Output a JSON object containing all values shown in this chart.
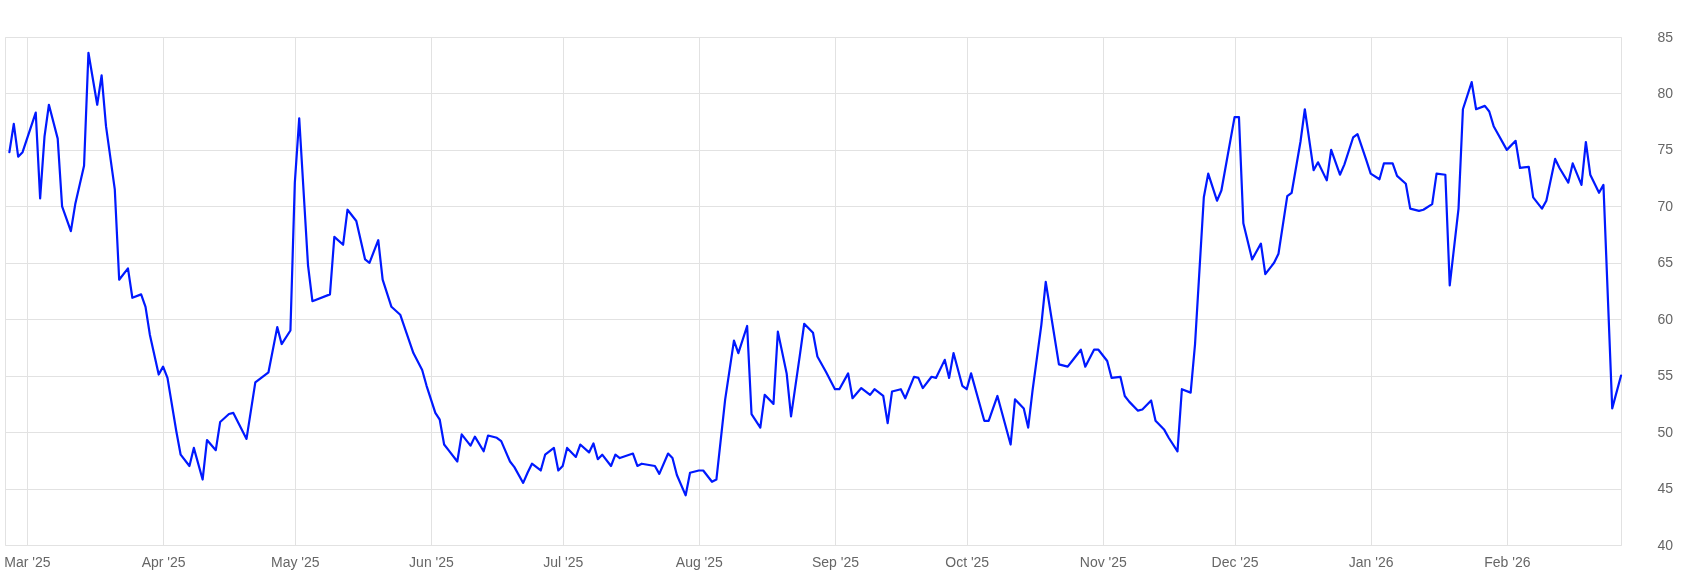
{
  "chart_data": {
    "type": "line",
    "grid": true,
    "xlim": [
      "2025-02-24",
      "2026-02-27"
    ],
    "xticks": [
      {
        "value": "2025-03-01",
        "label": "Mar '25"
      },
      {
        "value": "2025-04-01",
        "label": "Apr '25"
      },
      {
        "value": "2025-05-01",
        "label": "May '25"
      },
      {
        "value": "2025-06-01",
        "label": "Jun '25"
      },
      {
        "value": "2025-07-01",
        "label": "Jul '25"
      },
      {
        "value": "2025-08-01",
        "label": "Aug '25"
      },
      {
        "value": "2025-09-01",
        "label": "Sep '25"
      },
      {
        "value": "2025-10-01",
        "label": "Oct '25"
      },
      {
        "value": "2025-11-01",
        "label": "Nov '25"
      },
      {
        "value": "2025-12-01",
        "label": "Dec '25"
      },
      {
        "value": "2026-01-01",
        "label": "Jan '26"
      },
      {
        "value": "2026-02-01",
        "label": "Feb '26"
      }
    ],
    "ylim": [
      40,
      85
    ],
    "yticks": [
      40,
      45,
      50,
      55,
      60,
      65,
      70,
      75,
      80,
      85
    ],
    "x": [
      "2025-02-25",
      "2025-02-26",
      "2025-02-27",
      "2025-02-28",
      "2025-03-03",
      "2025-03-04",
      "2025-03-05",
      "2025-03-06",
      "2025-03-08",
      "2025-03-09",
      "2025-03-11",
      "2025-03-12",
      "2025-03-14",
      "2025-03-15",
      "2025-03-17",
      "2025-03-18",
      "2025-03-19",
      "2025-03-21",
      "2025-03-22",
      "2025-03-24",
      "2025-03-25",
      "2025-03-27",
      "2025-03-28",
      "2025-03-29",
      "2025-03-31",
      "2025-04-01",
      "2025-04-02",
      "2025-04-04",
      "2025-04-05",
      "2025-04-07",
      "2025-04-08",
      "2025-04-10",
      "2025-04-11",
      "2025-04-13",
      "2025-04-14",
      "2025-04-16",
      "2025-04-17",
      "2025-04-20",
      "2025-04-22",
      "2025-04-25",
      "2025-04-27",
      "2025-04-28",
      "2025-04-30",
      "2025-05-01",
      "2025-05-02",
      "2025-05-04",
      "2025-05-05",
      "2025-05-09",
      "2025-05-10",
      "2025-05-12",
      "2025-05-13",
      "2025-05-15",
      "2025-05-17",
      "2025-05-18",
      "2025-05-20",
      "2025-05-21",
      "2025-05-23",
      "2025-05-25",
      "2025-05-28",
      "2025-05-30",
      "2025-05-31",
      "2025-06-02",
      "2025-06-03",
      "2025-06-04",
      "2025-06-05",
      "2025-06-07",
      "2025-06-08",
      "2025-06-10",
      "2025-06-11",
      "2025-06-13",
      "2025-06-14",
      "2025-06-16",
      "2025-06-17",
      "2025-06-19",
      "2025-06-20",
      "2025-06-22",
      "2025-06-23",
      "2025-06-24",
      "2025-06-26",
      "2025-06-27",
      "2025-06-29",
      "2025-06-30",
      "2025-07-01",
      "2025-07-02",
      "2025-07-04",
      "2025-07-05",
      "2025-07-07",
      "2025-07-08",
      "2025-07-09",
      "2025-07-10",
      "2025-07-12",
      "2025-07-13",
      "2025-07-14",
      "2025-07-17",
      "2025-07-18",
      "2025-07-19",
      "2025-07-22",
      "2025-07-23",
      "2025-07-25",
      "2025-07-26",
      "2025-07-27",
      "2025-07-29",
      "2025-07-30",
      "2025-08-01",
      "2025-08-02",
      "2025-08-04",
      "2025-08-05",
      "2025-08-07",
      "2025-08-09",
      "2025-08-10",
      "2025-08-12",
      "2025-08-13",
      "2025-08-15",
      "2025-08-16",
      "2025-08-18",
      "2025-08-19",
      "2025-08-21",
      "2025-08-22",
      "2025-08-24",
      "2025-08-25",
      "2025-08-27",
      "2025-08-28",
      "2025-08-30",
      "2025-09-01",
      "2025-09-02",
      "2025-09-04",
      "2025-09-05",
      "2025-09-07",
      "2025-09-09",
      "2025-09-10",
      "2025-09-12",
      "2025-09-13",
      "2025-09-14",
      "2025-09-16",
      "2025-09-17",
      "2025-09-19",
      "2025-09-20",
      "2025-09-21",
      "2025-09-23",
      "2025-09-24",
      "2025-09-26",
      "2025-09-27",
      "2025-09-28",
      "2025-09-30",
      "2025-10-01",
      "2025-10-02",
      "2025-10-05",
      "2025-10-06",
      "2025-10-08",
      "2025-10-11",
      "2025-10-12",
      "2025-10-14",
      "2025-10-15",
      "2025-10-16",
      "2025-10-18",
      "2025-10-19",
      "2025-10-22",
      "2025-10-24",
      "2025-10-25",
      "2025-10-27",
      "2025-10-28",
      "2025-10-30",
      "2025-10-31",
      "2025-11-02",
      "2025-11-03",
      "2025-11-05",
      "2025-11-06",
      "2025-11-07",
      "2025-11-09",
      "2025-11-10",
      "2025-11-12",
      "2025-11-13",
      "2025-11-15",
      "2025-11-16",
      "2025-11-18",
      "2025-11-19",
      "2025-11-21",
      "2025-11-22",
      "2025-11-24",
      "2025-11-25",
      "2025-11-27",
      "2025-11-28",
      "2025-12-01",
      "2025-12-02",
      "2025-12-03",
      "2025-12-05",
      "2025-12-07",
      "2025-12-08",
      "2025-12-10",
      "2025-12-11",
      "2025-12-13",
      "2025-12-14",
      "2025-12-16",
      "2025-12-17",
      "2025-12-19",
      "2025-12-20",
      "2025-12-22",
      "2025-12-23",
      "2025-12-25",
      "2025-12-26",
      "2025-12-28",
      "2025-12-29",
      "2025-12-31",
      "2026-01-01",
      "2026-01-03",
      "2026-01-04",
      "2026-01-06",
      "2026-01-07",
      "2026-01-09",
      "2026-01-10",
      "2026-01-12",
      "2026-01-13",
      "2026-01-15",
      "2026-01-16",
      "2026-01-18",
      "2026-01-19",
      "2026-01-21",
      "2026-01-22",
      "2026-01-24",
      "2026-01-25",
      "2026-01-27",
      "2026-01-28",
      "2026-01-29",
      "2026-02-01",
      "2026-02-03",
      "2026-02-04",
      "2026-02-06",
      "2026-02-07",
      "2026-02-09",
      "2026-02-10",
      "2026-02-12",
      "2026-02-13",
      "2026-02-15",
      "2026-02-16",
      "2026-02-18",
      "2026-02-19",
      "2026-02-20",
      "2026-02-22",
      "2026-02-23",
      "2026-02-25",
      "2026-02-27"
    ],
    "series": [
      {
        "color": "#0019ff",
        "values": [
          74.8,
          77.3,
          74.4,
          74.8,
          78.3,
          70.7,
          76.2,
          79.0,
          76.0,
          70.0,
          67.8,
          70.2,
          73.6,
          83.6,
          79.0,
          81.6,
          77.1,
          71.5,
          63.5,
          64.5,
          61.9,
          62.2,
          61.1,
          58.6,
          55.1,
          55.8,
          54.8,
          50.1,
          48.0,
          47.0,
          48.6,
          45.8,
          49.3,
          48.4,
          50.9,
          51.6,
          51.7,
          49.4,
          54.4,
          55.3,
          59.3,
          57.8,
          59.0,
          72.1,
          77.8,
          64.8,
          61.6,
          62.2,
          67.3,
          66.6,
          69.7,
          68.7,
          65.3,
          65.0,
          67.0,
          63.5,
          61.1,
          60.4,
          57.0,
          55.5,
          54.1,
          51.7,
          51.1,
          48.9,
          48.4,
          47.4,
          49.8,
          48.8,
          49.6,
          48.3,
          49.7,
          49.5,
          49.2,
          47.4,
          46.9,
          45.5,
          46.4,
          47.2,
          46.6,
          48.0,
          48.6,
          46.6,
          47.0,
          48.6,
          47.8,
          48.9,
          48.2,
          49.0,
          47.6,
          48.0,
          47.0,
          48.0,
          47.7,
          48.1,
          47.0,
          47.2,
          47.0,
          46.3,
          48.1,
          47.7,
          46.2,
          44.4,
          46.4,
          46.6,
          46.6,
          45.6,
          45.8,
          52.9,
          58.1,
          57.0,
          59.4,
          51.6,
          50.4,
          53.3,
          52.5,
          58.9,
          55.2,
          51.4,
          56.8,
          59.6,
          58.8,
          56.7,
          55.3,
          53.8,
          53.8,
          55.2,
          53.0,
          53.9,
          53.3,
          53.8,
          53.2,
          50.8,
          53.6,
          53.8,
          53.0,
          54.9,
          54.8,
          53.9,
          54.9,
          54.8,
          56.4,
          54.8,
          57.0,
          54.1,
          53.8,
          55.2,
          51.0,
          51.0,
          53.2,
          48.9,
          52.9,
          52.1,
          50.4,
          53.7,
          59.5,
          63.3,
          56.0,
          55.8,
          56.3,
          57.3,
          55.8,
          57.3,
          57.3,
          56.3,
          54.8,
          54.9,
          53.2,
          52.7,
          51.9,
          52.0,
          52.8,
          51.0,
          50.2,
          49.5,
          48.3,
          53.8,
          53.5,
          57.8,
          70.8,
          72.9,
          70.5,
          71.4,
          77.9,
          77.9,
          68.5,
          65.3,
          66.7,
          64.0,
          65.0,
          65.8,
          70.9,
          71.2,
          75.7,
          78.6,
          73.2,
          73.9,
          72.3,
          75.0,
          72.8,
          73.7,
          76.1,
          76.4,
          74.1,
          72.9,
          72.4,
          73.8,
          73.8,
          72.7,
          72.0,
          69.8,
          69.6,
          69.7,
          70.2,
          72.9,
          72.8,
          63.0,
          69.8,
          78.6,
          81.0,
          78.6,
          78.9,
          78.4,
          77.1,
          75.0,
          75.8,
          73.4,
          73.5,
          70.8,
          69.8,
          70.5,
          74.2,
          73.4,
          72.1,
          73.8,
          71.9,
          75.7,
          72.8,
          71.2,
          71.9,
          52.1,
          55.0
        ]
      }
    ]
  }
}
